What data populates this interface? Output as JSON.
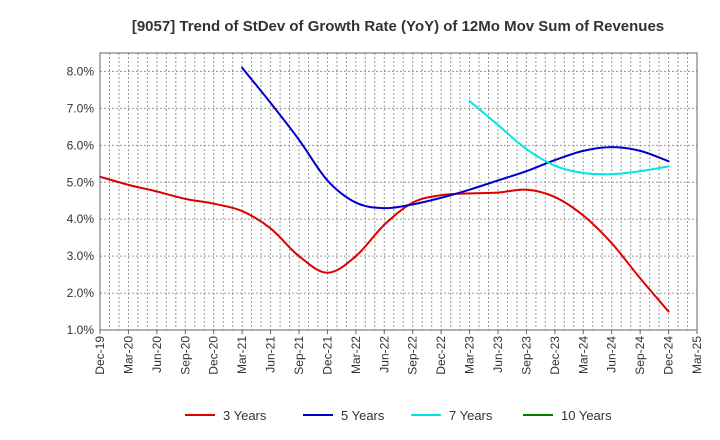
{
  "chart_data": {
    "type": "line",
    "title": "[9057]  Trend of StDev of Growth Rate (YoY) of 12Mo Mov Sum of Revenues",
    "xlabel": "",
    "ylabel": "",
    "categories": [
      "Dec-19",
      "Mar-20",
      "Jun-20",
      "Sep-20",
      "Dec-20",
      "Mar-21",
      "Jun-21",
      "Sep-21",
      "Dec-21",
      "Mar-22",
      "Jun-22",
      "Sep-22",
      "Dec-22",
      "Mar-23",
      "Jun-23",
      "Sep-23",
      "Dec-23",
      "Mar-24",
      "Jun-24",
      "Sep-24",
      "Dec-24",
      "Mar-25"
    ],
    "ylim": [
      1.0,
      8.5
    ],
    "yticks": [
      1.0,
      2.0,
      3.0,
      4.0,
      5.0,
      6.0,
      7.0,
      8.0
    ],
    "ytick_labels": [
      "1.0%",
      "2.0%",
      "3.0%",
      "4.0%",
      "5.0%",
      "6.0%",
      "7.0%",
      "8.0%"
    ],
    "grid": true,
    "legend_position": "bottom",
    "series": [
      {
        "name": "3 Years",
        "color": "#dd0000",
        "values": [
          5.15,
          4.93,
          4.75,
          4.55,
          4.42,
          4.22,
          3.75,
          3.0,
          2.55,
          3.0,
          3.85,
          4.45,
          4.65,
          4.7,
          4.72,
          4.8,
          4.6,
          4.1,
          3.35,
          2.4,
          1.5,
          null
        ]
      },
      {
        "name": "5 Years",
        "color": "#0000cc",
        "values": [
          null,
          null,
          null,
          null,
          null,
          8.1,
          7.15,
          6.15,
          5.05,
          4.45,
          4.3,
          4.4,
          4.58,
          4.8,
          5.05,
          5.3,
          5.6,
          5.85,
          5.95,
          5.85,
          5.57,
          null
        ]
      },
      {
        "name": "7 Years",
        "color": "#00e5e5",
        "values": [
          null,
          null,
          null,
          null,
          null,
          null,
          null,
          null,
          null,
          null,
          null,
          null,
          null,
          7.2,
          6.55,
          5.9,
          5.45,
          5.25,
          5.22,
          5.3,
          5.43,
          null
        ]
      },
      {
        "name": "10 Years",
        "color": "#008000",
        "values": [
          null,
          null,
          null,
          null,
          null,
          null,
          null,
          null,
          null,
          null,
          null,
          null,
          null,
          null,
          null,
          null,
          null,
          null,
          null,
          null,
          null,
          null
        ]
      }
    ]
  }
}
